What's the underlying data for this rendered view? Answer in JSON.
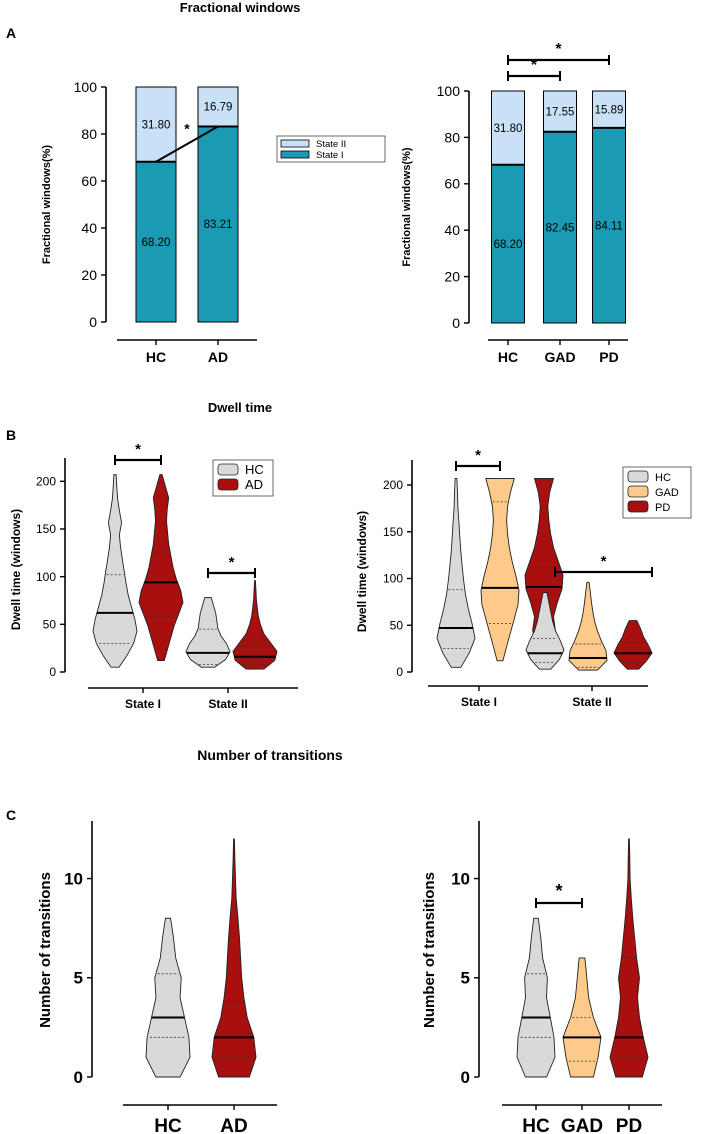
{
  "colors": {
    "state1": "#1a9bb3",
    "state2": "#c9e1f6",
    "hc": "#d9d9d9",
    "gad": "#fdca8a",
    "pd_ad": "#a80f0f",
    "axis": "#000000"
  },
  "chart_data": [
    {
      "id": "A-left",
      "panel": "A",
      "section_title": "Fractional windows",
      "type": "bar",
      "stacked": true,
      "categories": [
        "HC",
        "AD"
      ],
      "series": [
        {
          "name": "State I",
          "values": [
            68.2,
            83.21
          ],
          "labels": [
            "68.20",
            "83.21"
          ]
        },
        {
          "name": "State II",
          "values": [
            31.8,
            16.79
          ],
          "labels": [
            "31.80",
            "16.79"
          ]
        }
      ],
      "ylabel": "Fractional windows(%)",
      "ylim": [
        0,
        100
      ],
      "yticks": [
        "0",
        "20",
        "40",
        "60",
        "80",
        "100"
      ],
      "legend": [
        "State II",
        "State I"
      ],
      "significance": [
        {
          "from": "HC",
          "to": "AD",
          "label": "*",
          "style": "line"
        }
      ]
    },
    {
      "id": "A-right",
      "panel": "A",
      "type": "bar",
      "stacked": true,
      "categories": [
        "HC",
        "GAD",
        "PD"
      ],
      "series": [
        {
          "name": "State I",
          "values": [
            68.2,
            82.45,
            84.11
          ],
          "labels": [
            "68.20",
            "82.45",
            "84.11"
          ]
        },
        {
          "name": "State II",
          "values": [
            31.8,
            17.55,
            15.89
          ],
          "labels": [
            "31.80",
            "17.55",
            "15.89"
          ]
        }
      ],
      "ylabel": "Fractional windows(%)",
      "ylim": [
        0,
        100
      ],
      "yticks": [
        "0",
        "20",
        "40",
        "60",
        "80",
        "100"
      ],
      "significance": [
        {
          "from": "HC",
          "to": "GAD",
          "label": "*"
        },
        {
          "from": "HC",
          "to": "PD",
          "label": "*"
        }
      ]
    },
    {
      "id": "B-left",
      "panel": "B",
      "section_title": "Dwell time",
      "type": "violin",
      "categories": [
        "State I",
        "State II"
      ],
      "groups": [
        "HC",
        "AD"
      ],
      "ylabel": "Dwell time (windows)",
      "ylim": [
        0,
        215
      ],
      "yticks": [
        "0",
        "50",
        "100",
        "150",
        "200"
      ],
      "legend": [
        "HC",
        "AD"
      ],
      "violins": [
        {
          "category": "State I",
          "group": "HC",
          "min": 5,
          "max": 207,
          "median": 62,
          "q1": 30,
          "q3": 102,
          "shape": [
            0.18,
            0.55,
            0.85,
            1.0,
            0.9,
            0.75,
            0.6,
            0.5,
            0.42,
            0.33,
            0.25,
            0.2,
            0.3,
            0.2,
            0.12,
            0.08,
            0.05
          ]
        },
        {
          "category": "State I",
          "group": "AD",
          "min": 12,
          "max": 207,
          "median": 94,
          "q1": 58,
          "q3": 126,
          "shape": [
            0.15,
            0.3,
            0.45,
            0.6,
            0.8,
            1.0,
            0.9,
            0.7,
            0.55,
            0.45,
            0.35,
            0.3,
            0.25,
            0.28,
            0.35,
            0.2,
            0.05
          ]
        },
        {
          "category": "State II",
          "group": "HC",
          "min": 5,
          "max": 78,
          "median": 20,
          "q1": 8,
          "q3": 45,
          "shape": [
            0.3,
            0.8,
            1.0,
            0.85,
            0.6,
            0.45,
            0.4,
            0.35,
            0.25,
            0.15
          ]
        },
        {
          "category": "State II",
          "group": "AD",
          "min": 3,
          "max": 96,
          "median": 16,
          "q1": 8,
          "q3": 27,
          "shape": [
            0.4,
            0.9,
            1.0,
            0.7,
            0.4,
            0.25,
            0.15,
            0.1,
            0.06,
            0.04,
            0.02
          ]
        }
      ],
      "significance": [
        {
          "category": "State I",
          "label": "*"
        },
        {
          "category": "State II",
          "label": "*"
        }
      ]
    },
    {
      "id": "B-right",
      "panel": "B",
      "type": "violin",
      "categories": [
        "State I",
        "State II"
      ],
      "groups": [
        "HC",
        "GAD",
        "PD"
      ],
      "ylabel": "Dwell time (windows)",
      "ylim": [
        0,
        215
      ],
      "yticks": [
        "0",
        "50",
        "100",
        "150",
        "200"
      ],
      "legend": [
        "HC",
        "GAD",
        "PD"
      ],
      "violins": [
        {
          "category": "State I",
          "group": "HC",
          "min": 5,
          "max": 207,
          "median": 47,
          "q1": 25,
          "q3": 88,
          "shape": [
            0.25,
            0.7,
            1.0,
            0.85,
            0.65,
            0.5,
            0.4,
            0.32,
            0.25,
            0.2,
            0.15,
            0.1,
            0.08,
            0.05
          ]
        },
        {
          "category": "State I",
          "group": "GAD",
          "min": 12,
          "max": 207,
          "median": 90,
          "q1": 52,
          "q3": 182,
          "shape": [
            0.15,
            0.35,
            0.55,
            0.75,
            0.95,
            1.0,
            0.85,
            0.65,
            0.5,
            0.4,
            0.35,
            0.4,
            0.55,
            0.75
          ]
        },
        {
          "category": "State I",
          "group": "PD",
          "min": 15,
          "max": 207,
          "median": 91,
          "q1": 55,
          "q3": 112,
          "shape": [
            0.2,
            0.45,
            0.6,
            0.5,
            0.7,
            0.95,
            1.0,
            0.75,
            0.5,
            0.35,
            0.25,
            0.2,
            0.3,
            0.5
          ]
        },
        {
          "category": "State II",
          "group": "HC",
          "min": 3,
          "max": 85,
          "median": 20,
          "q1": 10,
          "q3": 36,
          "shape": [
            0.3,
            0.75,
            1.0,
            0.8,
            0.55,
            0.4,
            0.3,
            0.2,
            0.1
          ]
        },
        {
          "category": "State II",
          "group": "GAD",
          "min": 2,
          "max": 96,
          "median": 15,
          "q1": 5,
          "q3": 30,
          "shape": [
            0.5,
            1.0,
            0.95,
            0.7,
            0.5,
            0.35,
            0.25,
            0.18,
            0.12,
            0.06
          ]
        },
        {
          "category": "State II",
          "group": "PD",
          "min": 3,
          "max": 55,
          "median": 20,
          "q1": 10,
          "q3": 32,
          "shape": [
            0.3,
            0.7,
            1.0,
            0.8,
            0.55,
            0.4,
            0.2
          ]
        }
      ],
      "significance": [
        {
          "category": "State II",
          "label": "*",
          "span": "all"
        },
        {
          "category": "State I",
          "from": "HC",
          "to": "GAD",
          "label": "*"
        }
      ]
    },
    {
      "id": "C-left",
      "panel": "C",
      "section_title": "Number of transitions",
      "type": "violin",
      "categories": [
        "HC",
        "AD"
      ],
      "ylabel": "Number of transitions",
      "ylim": [
        0,
        12.8
      ],
      "yticks": [
        "0",
        "5",
        "10"
      ],
      "violins": [
        {
          "category": "HC",
          "group": "HC",
          "min": 0,
          "max": 8,
          "median": 3,
          "q1": 2,
          "q3": 5.2,
          "shape": [
            0.55,
            1.0,
            0.95,
            0.75,
            0.55,
            0.6,
            0.35,
            0.25,
            0.12
          ]
        },
        {
          "category": "AD",
          "group": "AD",
          "min": 0,
          "max": 12,
          "median": 2,
          "q1": 1,
          "q3": 3.8,
          "shape": [
            0.7,
            1.0,
            0.9,
            0.6,
            0.45,
            0.35,
            0.3,
            0.25,
            0.18,
            0.1,
            0.07,
            0.04,
            0.02
          ]
        }
      ]
    },
    {
      "id": "C-right",
      "panel": "C",
      "type": "violin",
      "categories": [
        "HC",
        "GAD",
        "PD"
      ],
      "ylabel": "Number of transitions",
      "ylim": [
        0,
        12.8
      ],
      "yticks": [
        "0",
        "5",
        "10"
      ],
      "violins": [
        {
          "category": "HC",
          "group": "HC",
          "min": 0,
          "max": 8,
          "median": 3,
          "q1": 2,
          "q3": 5.2,
          "shape": [
            0.55,
            1.0,
            0.95,
            0.75,
            0.55,
            0.6,
            0.35,
            0.25,
            0.12
          ]
        },
        {
          "category": "GAD",
          "group": "GAD",
          "min": 0,
          "max": 6,
          "median": 2,
          "q1": 0.8,
          "q3": 3,
          "shape": [
            0.6,
            0.85,
            1.0,
            0.6,
            0.35,
            0.25,
            0.15
          ]
        },
        {
          "category": "PD",
          "group": "PD",
          "min": 0,
          "max": 12,
          "median": 2,
          "q1": 1,
          "q3": 6,
          "shape": [
            0.7,
            1.0,
            0.75,
            0.55,
            0.45,
            0.55,
            0.4,
            0.3,
            0.2,
            0.12,
            0.06,
            0.04,
            0.02
          ]
        }
      ],
      "significance": [
        {
          "from": "HC",
          "to": "GAD",
          "label": "*"
        }
      ]
    }
  ],
  "panel_letters": [
    "A",
    "B",
    "C"
  ]
}
